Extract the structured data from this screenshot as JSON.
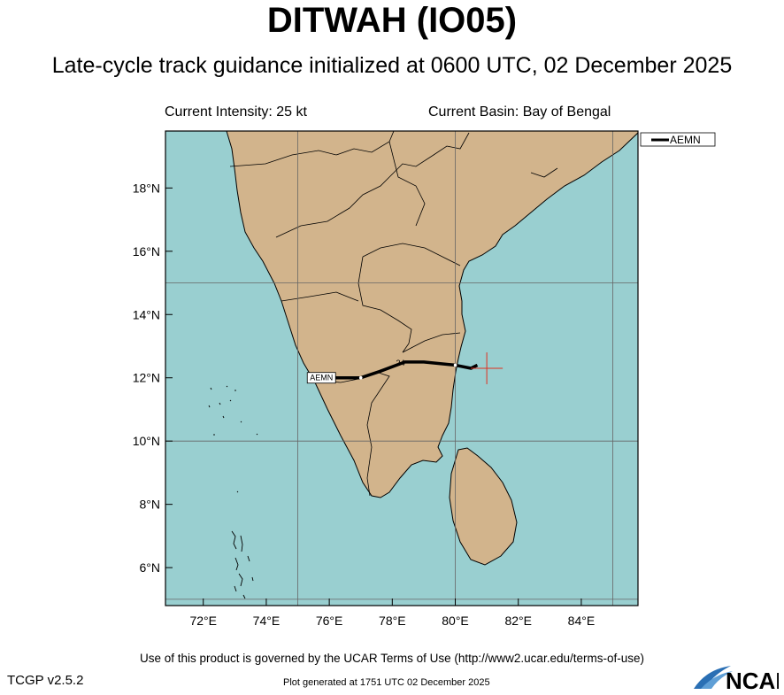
{
  "header": {
    "title": "DITWAH (IO05)",
    "subtitle": "Late-cycle track guidance initialized at 0600 UTC, 02 December 2025",
    "current_intensity": "Current Intensity: 25 kt",
    "current_basin": "Current Basin: Bay of Bengal"
  },
  "map": {
    "lon_range": [
      70.8,
      85.8
    ],
    "lat_range": [
      4.8,
      19.8
    ],
    "lat_ticks": [
      "6°N",
      "8°N",
      "10°N",
      "12°N",
      "14°N",
      "16°N",
      "18°N"
    ],
    "lon_ticks": [
      "72°E",
      "74°E",
      "76°E",
      "78°E",
      "80°E",
      "82°E",
      "84°E"
    ],
    "ocean_color": "#99cfd0",
    "land_color": "#d2b48c",
    "current_position": {
      "lon": 81.0,
      "lat": 12.3
    },
    "track": {
      "model": "AEMN",
      "color": "#000000",
      "points": [
        {
          "lon": 80.7,
          "lat": 12.4
        },
        {
          "lon": 80.5,
          "lat": 12.3
        },
        {
          "lon": 80.0,
          "lat": 12.4
        },
        {
          "lon": 79.0,
          "lat": 12.5
        },
        {
          "lon": 78.4,
          "lat": 12.5
        },
        {
          "lon": 77.6,
          "lat": 12.2
        },
        {
          "lon": 77.0,
          "lat": 12.0
        },
        {
          "lon": 76.2,
          "lat": 12.0
        }
      ],
      "label_text": "AEMN",
      "marker_label": "24"
    }
  },
  "legend": {
    "label": "AEMN"
  },
  "footer": {
    "terms": "Use of this product is governed by the UCAR Terms of Use (http://www2.ucar.edu/terms-of-use)",
    "version": "TCGP v2.5.2",
    "generated": "Plot generated at 1751 UTC   02 December 2025",
    "logo": "NCAR"
  }
}
